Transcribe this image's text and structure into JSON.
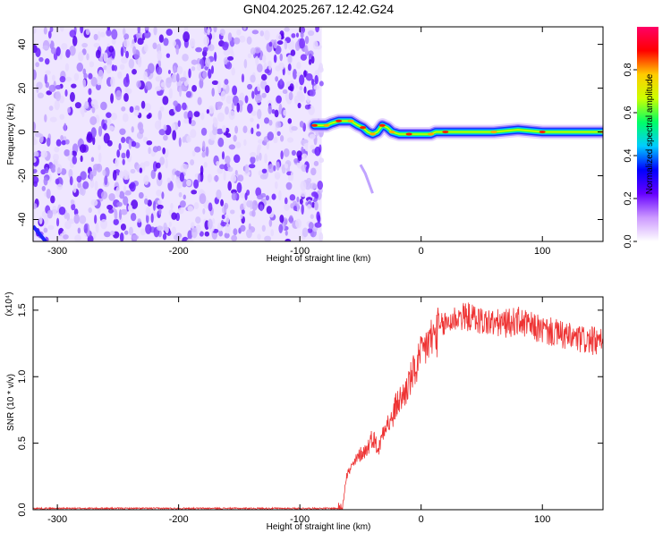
{
  "title": "GN04.2025.267.12.42.G24",
  "spectrogram": {
    "type": "heatmap",
    "xlabel": "Height of straight line (km)",
    "ylabel": "Frequency (Hz)",
    "xlim": [
      -320,
      150
    ],
    "ylim": [
      -50,
      48
    ],
    "xticks": [
      -300,
      -200,
      -100,
      0,
      100
    ],
    "yticks": [
      -40,
      -20,
      0,
      20,
      40
    ],
    "noise_region_x": [
      -320,
      -82
    ],
    "signal_track": [
      {
        "x": -88,
        "y": 3
      },
      {
        "x": -82,
        "y": 3
      },
      {
        "x": -78,
        "y": 3
      },
      {
        "x": -74,
        "y": 4
      },
      {
        "x": -68,
        "y": 5
      },
      {
        "x": -62,
        "y": 5
      },
      {
        "x": -58,
        "y": 5
      },
      {
        "x": -52,
        "y": 3
      },
      {
        "x": -48,
        "y": 2
      },
      {
        "x": -44,
        "y": 0
      },
      {
        "x": -40,
        "y": -1
      },
      {
        "x": -36,
        "y": 0
      },
      {
        "x": -32,
        "y": 3
      },
      {
        "x": -28,
        "y": 2
      },
      {
        "x": -24,
        "y": 0
      },
      {
        "x": -18,
        "y": -1
      },
      {
        "x": -10,
        "y": -1
      },
      {
        "x": 0,
        "y": -1
      },
      {
        "x": 8,
        "y": -1
      },
      {
        "x": 12,
        "y": 0
      },
      {
        "x": 20,
        "y": 0
      },
      {
        "x": 40,
        "y": 0
      },
      {
        "x": 60,
        "y": 0
      },
      {
        "x": 80,
        "y": 1
      },
      {
        "x": 100,
        "y": 0
      },
      {
        "x": 120,
        "y": 0
      },
      {
        "x": 150,
        "y": 0
      }
    ],
    "secondary_trace": [
      {
        "x": -50,
        "y": -15
      },
      {
        "x": -46,
        "y": -19
      },
      {
        "x": -40,
        "y": -28
      }
    ],
    "colormap": [
      "#ffffff",
      "#cc99ff",
      "#6600ff",
      "#0000ff",
      "#00ccff",
      "#00ff66",
      "#ccff00",
      "#ffcc00",
      "#ff0000",
      "#ff0066"
    ]
  },
  "colorbar": {
    "label": "Normalized spectral amplitude",
    "range": [
      0,
      1
    ],
    "ticks": [
      0.0,
      0.2,
      0.4,
      0.6,
      0.8
    ]
  },
  "chart_data": {
    "type": "line",
    "xlabel": "Height of straight line (km)",
    "ylabel": "SNR (10 * v/v)",
    "multiplier": "(x10⁴)",
    "xlim": [
      -320,
      150
    ],
    "ylim": [
      0,
      1.6
    ],
    "xticks": [
      -300,
      -200,
      -100,
      0,
      100
    ],
    "yticks": [
      0.0,
      0.5,
      1.0,
      1.5
    ],
    "series": [
      {
        "color": "#ee3333",
        "x": [
          -320,
          -200,
          -100,
          -65,
          -62,
          -55,
          -50,
          -45,
          -40,
          -35,
          -30,
          -25,
          -20,
          -15,
          -10,
          -5,
          0,
          5,
          10,
          15,
          20,
          25,
          30,
          35,
          40,
          50,
          60,
          70,
          80,
          90,
          100,
          110,
          120,
          130,
          140,
          150
        ],
        "values": [
          0.01,
          0.01,
          0.01,
          0.01,
          0.25,
          0.35,
          0.42,
          0.45,
          0.55,
          0.45,
          0.65,
          0.65,
          0.8,
          0.85,
          0.95,
          1.05,
          1.15,
          1.25,
          1.3,
          1.35,
          1.4,
          1.42,
          1.45,
          1.45,
          1.45,
          1.42,
          1.4,
          1.4,
          1.42,
          1.38,
          1.35,
          1.33,
          1.3,
          1.28,
          1.27,
          1.25
        ]
      }
    ]
  }
}
